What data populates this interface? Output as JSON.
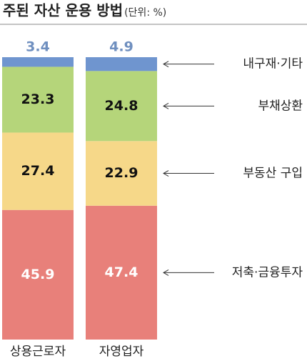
{
  "chart_data": {
    "type": "stacked_bar",
    "title": "주된 자산 운용 방법",
    "subtitle": "(단위: %)",
    "categories": [
      "상용근로자",
      "자영업자"
    ],
    "ylim": [
      0,
      100
    ],
    "series": [
      {
        "name": "저축·금융투자",
        "color": "#e8807a",
        "label_color": "#ffffff",
        "values": [
          45.9,
          47.4
        ]
      },
      {
        "name": "부동산 구입",
        "color": "#f6d889",
        "label_color": "#111111",
        "values": [
          27.4,
          22.9
        ]
      },
      {
        "name": "부채상환",
        "color": "#b5d57a",
        "label_color": "#111111",
        "values": [
          23.3,
          24.8
        ]
      },
      {
        "name": "내구재·기타",
        "color": "#6f95cf",
        "label_color": "#6f8fbf",
        "values": [
          3.4,
          4.9
        ]
      }
    ]
  }
}
